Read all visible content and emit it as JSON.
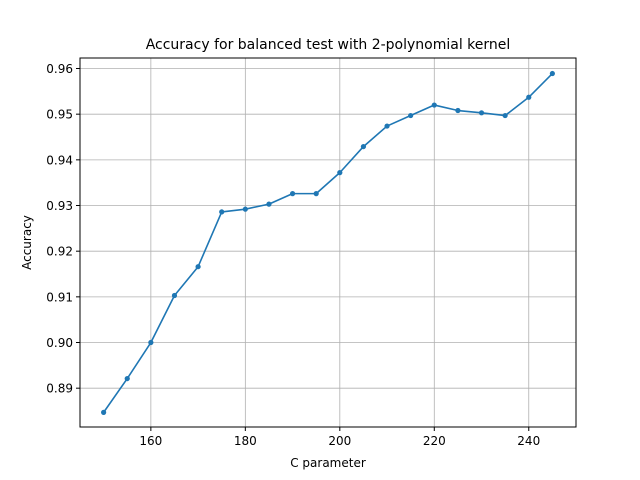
{
  "chart_data": {
    "type": "line",
    "title": "Accuracy for balanced test with 2-polynomial kernel",
    "xlabel": "C parameter",
    "ylabel": "Accuracy",
    "xlim": [
      145,
      250
    ],
    "ylim": [
      0.8815,
      0.9623
    ],
    "xticks": [
      160,
      180,
      200,
      220,
      240
    ],
    "yticks": [
      0.89,
      0.9,
      0.91,
      0.92,
      0.93,
      0.94,
      0.95,
      0.96
    ],
    "ytick_labels": [
      "0.89",
      "0.90",
      "0.91",
      "0.92",
      "0.93",
      "0.94",
      "0.95",
      "0.96"
    ],
    "grid": true,
    "color": "#1f77b4",
    "marker": "circle",
    "series": [
      {
        "x": [
          150,
          155,
          160,
          165,
          170,
          175,
          180,
          185,
          190,
          195,
          200,
          205,
          210,
          215,
          220,
          225,
          230,
          235,
          240,
          245
        ],
        "y": [
          0.8847,
          0.8921,
          0.9,
          0.9103,
          0.9166,
          0.9286,
          0.9292,
          0.9303,
          0.9326,
          0.9326,
          0.9372,
          0.9429,
          0.9474,
          0.9497,
          0.952,
          0.9508,
          0.9503,
          0.9497,
          0.9537,
          0.9589
        ]
      }
    ]
  }
}
